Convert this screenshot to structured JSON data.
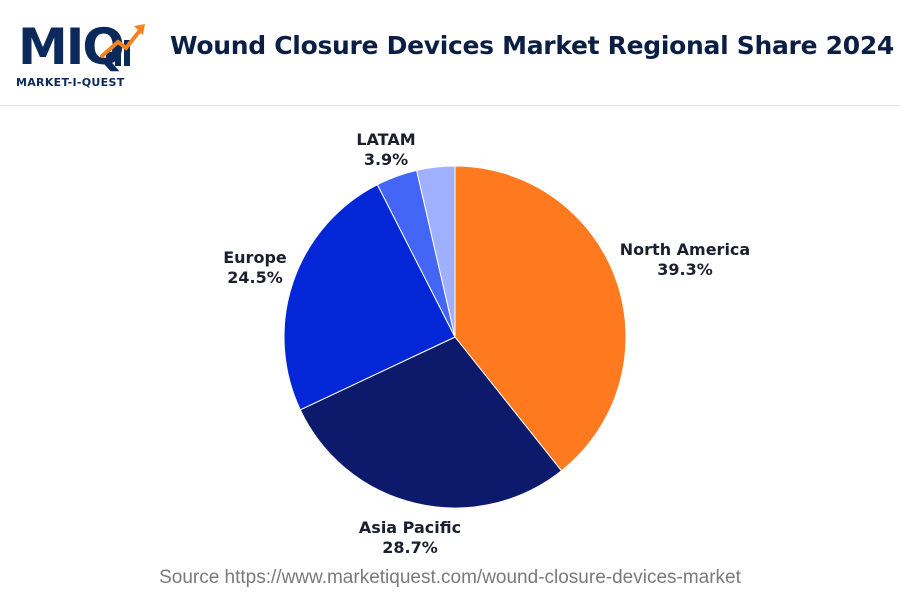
{
  "header": {
    "logo_text": "MIQ",
    "logo_sub": "MARKET-I-QUEST",
    "title": "Wound Closure Devices Market Regional Share 2024"
  },
  "colors": {
    "brand_navy": "#0b2a5b",
    "brand_orange": "#f5821f"
  },
  "chart_data": {
    "type": "pie",
    "title": "Wound Closure Devices Market Regional Share 2024",
    "unit": "%",
    "slices": [
      {
        "label": "North America",
        "value": 39.3,
        "display": "39.3%",
        "color": "#ff7a1f"
      },
      {
        "label": "Asia Pacific",
        "value": 28.7,
        "display": "28.7%",
        "color": "#0d1a6b"
      },
      {
        "label": "Europe",
        "value": 24.5,
        "display": "24.5%",
        "color": "#0327d6"
      },
      {
        "label": "LATAM",
        "value": 3.9,
        "display": "3.9%",
        "color": "#4466f6"
      },
      {
        "label": "",
        "value": 3.6,
        "display": "",
        "color": "#9fb0ff"
      }
    ]
  },
  "source": "Source https://www.marketiquest.com/wound-closure-devices-market"
}
